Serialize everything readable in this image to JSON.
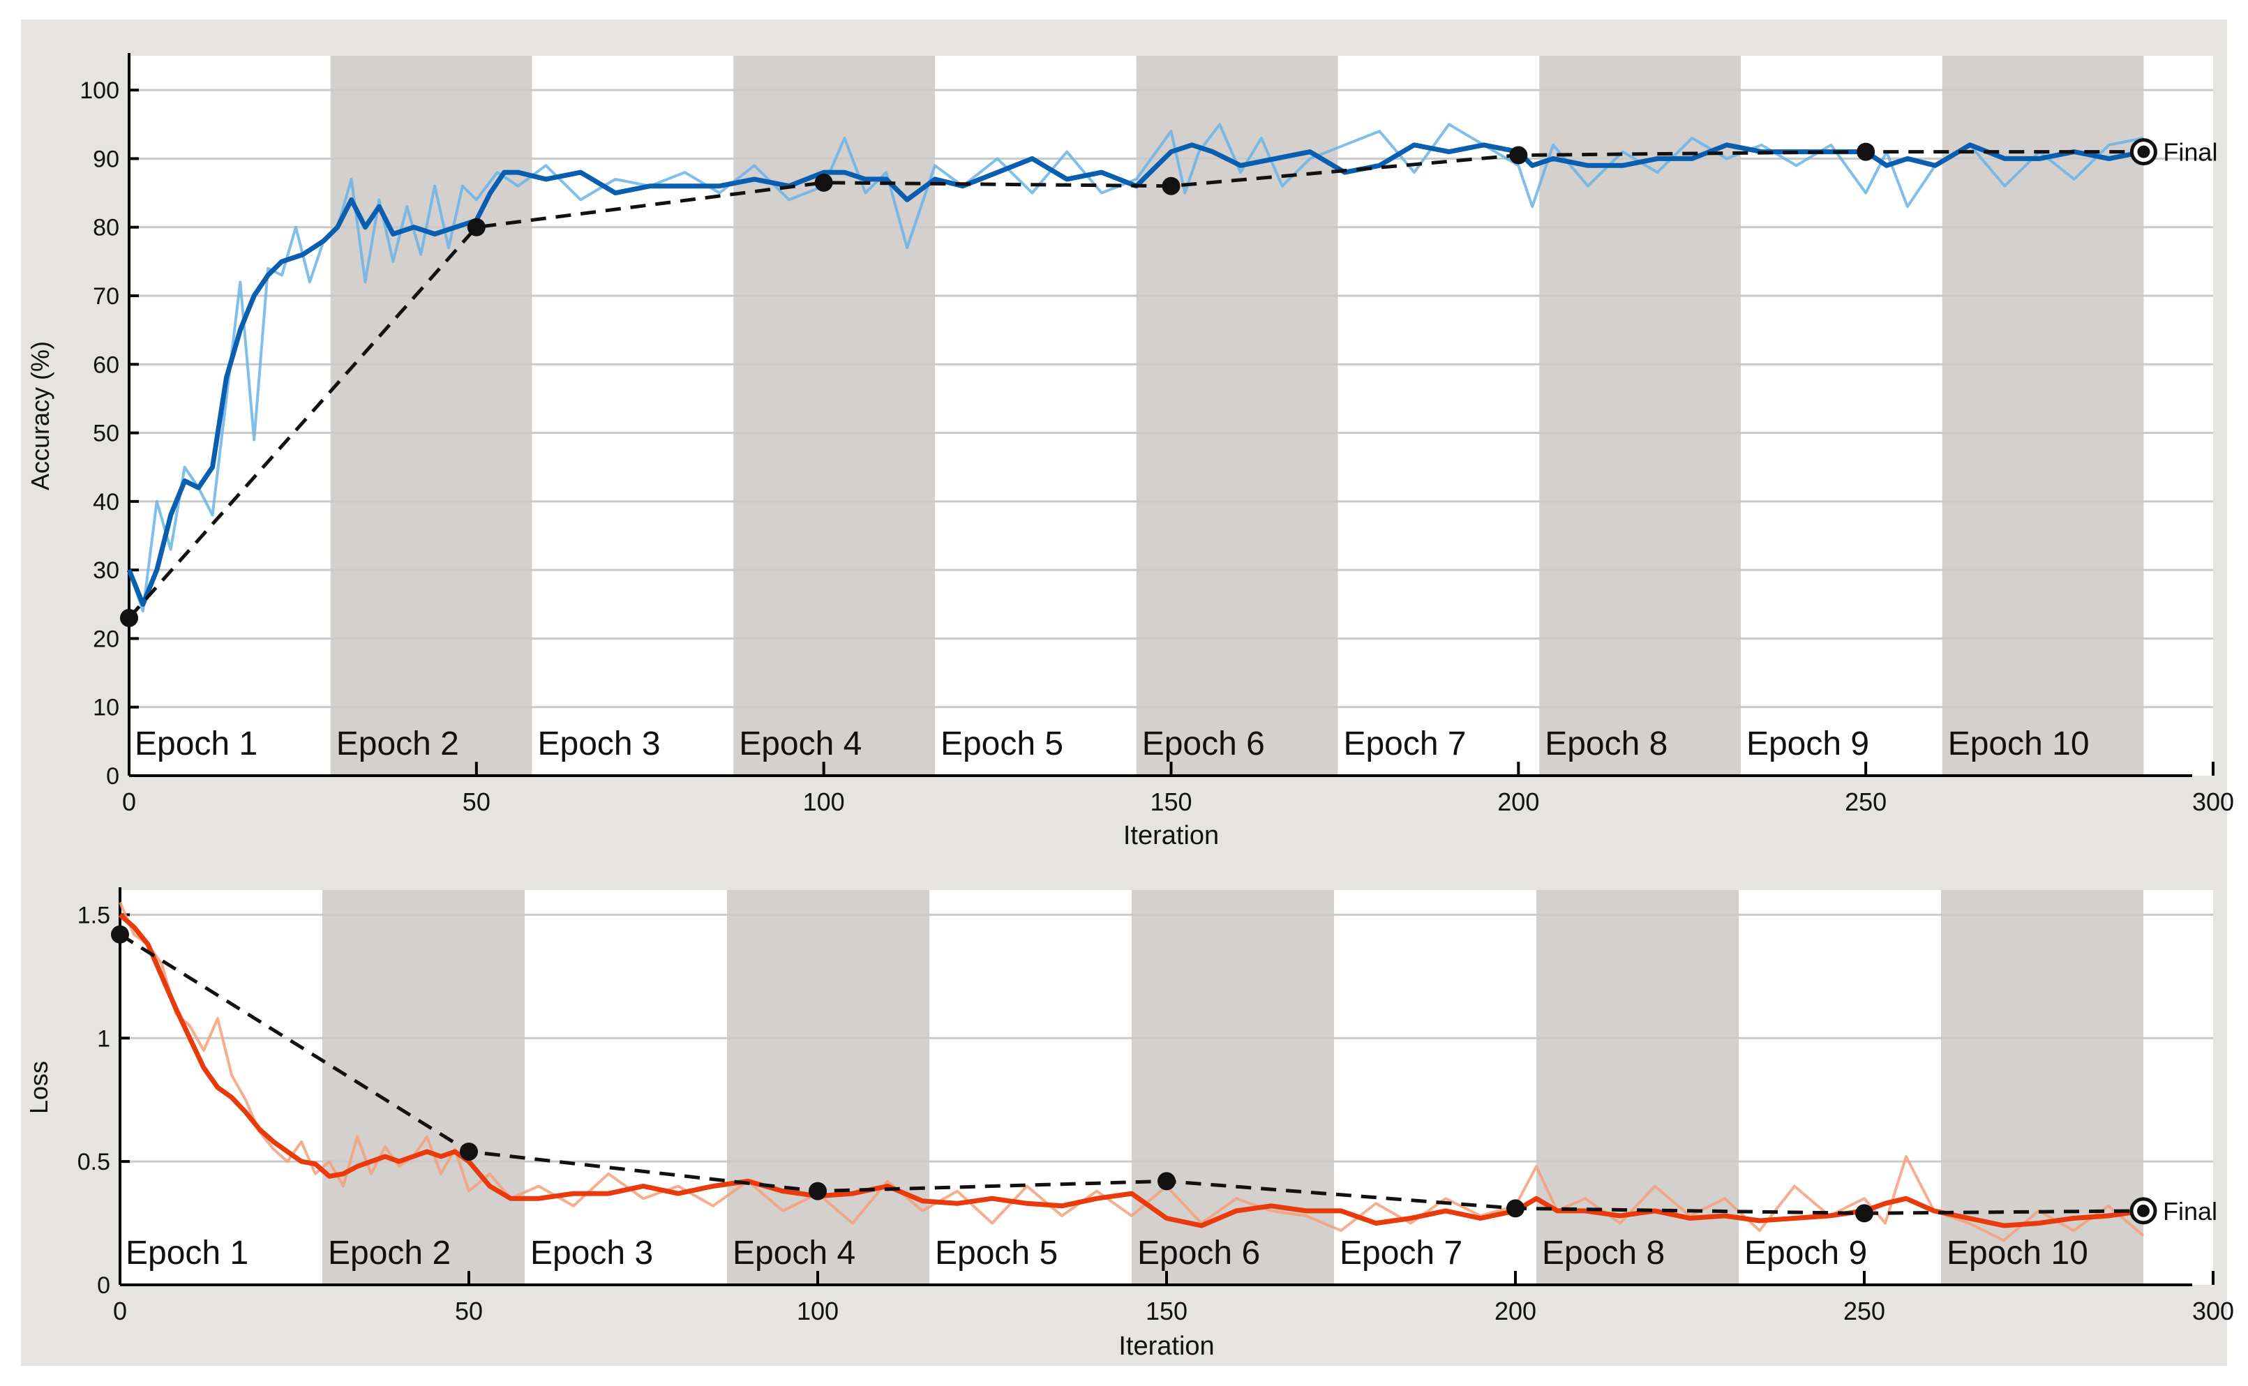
{
  "chart_data": [
    {
      "type": "line",
      "xlabel": "Iteration",
      "ylabel": "Accuracy (%)",
      "xlim": [
        0,
        300
      ],
      "ylim": [
        0,
        105
      ],
      "xticks": [
        0,
        50,
        100,
        150,
        200,
        250,
        300
      ],
      "yticks": [
        0,
        10,
        20,
        30,
        40,
        50,
        60,
        70,
        80,
        90,
        100
      ],
      "grid": true,
      "epoch_labels": [
        "Epoch 1",
        "Epoch 2",
        "Epoch 3",
        "Epoch 4",
        "Epoch 5",
        "Epoch 6",
        "Epoch 7",
        "Epoch 8",
        "Epoch 9",
        "Epoch 10"
      ],
      "epoch_boundaries": [
        0,
        29,
        58,
        87,
        116,
        145,
        174,
        203,
        232,
        261,
        290
      ],
      "final_label": "Final",
      "series": [
        {
          "role": "raw",
          "color": "#6ab4e6",
          "x": [
            0,
            2,
            4,
            6,
            8,
            10,
            12,
            14,
            16,
            18,
            20,
            22,
            24,
            26,
            28,
            30,
            32,
            34,
            36,
            38,
            40,
            42,
            44,
            46,
            48,
            50,
            53,
            56,
            60,
            65,
            70,
            75,
            80,
            85,
            90,
            95,
            100,
            103,
            106,
            109,
            112,
            116,
            120,
            125,
            130,
            135,
            140,
            145,
            150,
            152,
            154,
            157,
            160,
            163,
            166,
            170,
            175,
            180,
            185,
            190,
            195,
            200,
            202,
            205,
            210,
            215,
            220,
            225,
            230,
            235,
            240,
            245,
            250,
            253,
            256,
            260,
            265,
            270,
            275,
            280,
            285,
            290
          ],
          "y": [
            30,
            24,
            40,
            33,
            45,
            42,
            38,
            55,
            72,
            49,
            74,
            73,
            80,
            72,
            78,
            80,
            87,
            72,
            84,
            75,
            83,
            76,
            86,
            77,
            86,
            84,
            88,
            86,
            89,
            84,
            87,
            86,
            88,
            85,
            89,
            84,
            86,
            93,
            85,
            88,
            77,
            89,
            86,
            90,
            85,
            91,
            85,
            87,
            94,
            85,
            91,
            95,
            88,
            93,
            86,
            90,
            92,
            94,
            88,
            95,
            92,
            89,
            83,
            92,
            86,
            91,
            88,
            93,
            90,
            92,
            89,
            92,
            85,
            91,
            83,
            89,
            92,
            86,
            91,
            87,
            92,
            93
          ]
        },
        {
          "role": "smoothed",
          "color": "#0a5eb0",
          "x": [
            0,
            2,
            4,
            6,
            8,
            10,
            12,
            14,
            16,
            18,
            20,
            22,
            25,
            28,
            30,
            32,
            34,
            36,
            38,
            41,
            44,
            47,
            50,
            52,
            54,
            56,
            60,
            65,
            70,
            75,
            80,
            85,
            90,
            95,
            100,
            103,
            106,
            109,
            112,
            116,
            120,
            125,
            130,
            135,
            140,
            145,
            150,
            153,
            156,
            160,
            165,
            170,
            175,
            180,
            185,
            190,
            195,
            200,
            202,
            205,
            210,
            215,
            220,
            225,
            230,
            235,
            240,
            245,
            250,
            253,
            256,
            260,
            265,
            270,
            275,
            280,
            285,
            290
          ],
          "y": [
            30,
            25,
            30,
            38,
            43,
            42,
            45,
            58,
            65,
            70,
            73,
            75,
            76,
            78,
            80,
            84,
            80,
            83,
            79,
            80,
            79,
            80,
            81,
            85,
            88,
            88,
            87,
            88,
            85,
            86,
            86,
            86,
            87,
            86,
            88,
            88,
            87,
            87,
            84,
            87,
            86,
            88,
            90,
            87,
            88,
            86,
            91,
            92,
            91,
            89,
            90,
            91,
            88,
            89,
            92,
            91,
            92,
            91,
            89,
            90,
            89,
            89,
            90,
            90,
            92,
            91,
            91,
            91,
            91,
            89,
            90,
            89,
            92,
            90,
            90,
            91,
            90,
            91
          ]
        },
        {
          "role": "validation",
          "color": "#000000",
          "x": [
            0,
            50,
            100,
            150,
            200,
            250,
            290
          ],
          "y": [
            23,
            80,
            86.5,
            86,
            90.5,
            91,
            91
          ]
        }
      ]
    },
    {
      "type": "line",
      "xlabel": "Iteration",
      "ylabel": "Loss",
      "xlim": [
        0,
        300
      ],
      "ylim": [
        0,
        1.6
      ],
      "xticks": [
        0,
        50,
        100,
        150,
        200,
        250,
        300
      ],
      "yticks": [
        0,
        0.5,
        1,
        1.5
      ],
      "ytick_labels": [
        "0",
        "0.5",
        "1",
        "1.5"
      ],
      "grid": true,
      "epoch_labels": [
        "Epoch 1",
        "Epoch 2",
        "Epoch 3",
        "Epoch 4",
        "Epoch 5",
        "Epoch 6",
        "Epoch 7",
        "Epoch 8",
        "Epoch 9",
        "Epoch 10"
      ],
      "epoch_boundaries": [
        0,
        29,
        58,
        87,
        116,
        145,
        174,
        203,
        232,
        261,
        290
      ],
      "final_label": "Final",
      "series": [
        {
          "role": "raw",
          "color": "#f4a07a",
          "x": [
            0,
            2,
            4,
            6,
            8,
            10,
            12,
            14,
            16,
            18,
            20,
            22,
            24,
            26,
            28,
            30,
            32,
            34,
            36,
            38,
            40,
            42,
            44,
            46,
            48,
            50,
            53,
            56,
            60,
            65,
            70,
            75,
            80,
            85,
            90,
            95,
            100,
            105,
            110,
            115,
            120,
            125,
            130,
            135,
            140,
            145,
            150,
            155,
            160,
            165,
            170,
            175,
            180,
            185,
            190,
            195,
            200,
            203,
            206,
            210,
            215,
            220,
            225,
            230,
            235,
            240,
            245,
            250,
            253,
            256,
            260,
            265,
            270,
            275,
            280,
            285,
            290
          ],
          "y": [
            1.55,
            1.42,
            1.38,
            1.3,
            1.1,
            1.05,
            0.95,
            1.08,
            0.85,
            0.75,
            0.62,
            0.55,
            0.5,
            0.58,
            0.45,
            0.5,
            0.4,
            0.6,
            0.45,
            0.56,
            0.48,
            0.52,
            0.6,
            0.45,
            0.55,
            0.38,
            0.45,
            0.35,
            0.4,
            0.32,
            0.45,
            0.35,
            0.4,
            0.32,
            0.42,
            0.3,
            0.37,
            0.25,
            0.42,
            0.3,
            0.38,
            0.25,
            0.4,
            0.28,
            0.38,
            0.28,
            0.4,
            0.25,
            0.35,
            0.3,
            0.28,
            0.22,
            0.33,
            0.25,
            0.35,
            0.28,
            0.32,
            0.48,
            0.3,
            0.35,
            0.25,
            0.4,
            0.28,
            0.35,
            0.22,
            0.4,
            0.28,
            0.35,
            0.25,
            0.52,
            0.3,
            0.25,
            0.18,
            0.3,
            0.22,
            0.32,
            0.2
          ]
        },
        {
          "role": "smoothed",
          "color": "#e83a0a",
          "x": [
            0,
            2,
            4,
            6,
            8,
            10,
            12,
            14,
            16,
            18,
            20,
            22,
            24,
            26,
            28,
            30,
            32,
            34,
            36,
            38,
            40,
            42,
            44,
            46,
            48,
            50,
            53,
            56,
            60,
            65,
            70,
            75,
            80,
            85,
            90,
            95,
            100,
            105,
            110,
            115,
            120,
            125,
            130,
            135,
            140,
            145,
            150,
            155,
            160,
            165,
            170,
            175,
            180,
            185,
            190,
            195,
            200,
            203,
            206,
            210,
            215,
            220,
            225,
            230,
            235,
            240,
            245,
            250,
            253,
            256,
            260,
            265,
            270,
            275,
            280,
            285,
            290
          ],
          "y": [
            1.5,
            1.45,
            1.38,
            1.25,
            1.12,
            1.0,
            0.88,
            0.8,
            0.76,
            0.7,
            0.63,
            0.58,
            0.54,
            0.5,
            0.49,
            0.44,
            0.45,
            0.48,
            0.5,
            0.52,
            0.5,
            0.52,
            0.54,
            0.52,
            0.54,
            0.5,
            0.4,
            0.35,
            0.35,
            0.37,
            0.37,
            0.4,
            0.37,
            0.4,
            0.42,
            0.38,
            0.36,
            0.37,
            0.4,
            0.34,
            0.33,
            0.35,
            0.33,
            0.32,
            0.35,
            0.37,
            0.27,
            0.24,
            0.3,
            0.32,
            0.3,
            0.3,
            0.25,
            0.27,
            0.3,
            0.27,
            0.3,
            0.35,
            0.3,
            0.3,
            0.28,
            0.3,
            0.27,
            0.28,
            0.26,
            0.27,
            0.28,
            0.3,
            0.33,
            0.35,
            0.3,
            0.27,
            0.24,
            0.25,
            0.27,
            0.28,
            0.3
          ]
        },
        {
          "role": "validation",
          "color": "#000000",
          "x": [
            0,
            50,
            100,
            150,
            200,
            250,
            290
          ],
          "y": [
            1.42,
            0.54,
            0.38,
            0.42,
            0.31,
            0.29,
            0.3
          ]
        }
      ]
    }
  ]
}
